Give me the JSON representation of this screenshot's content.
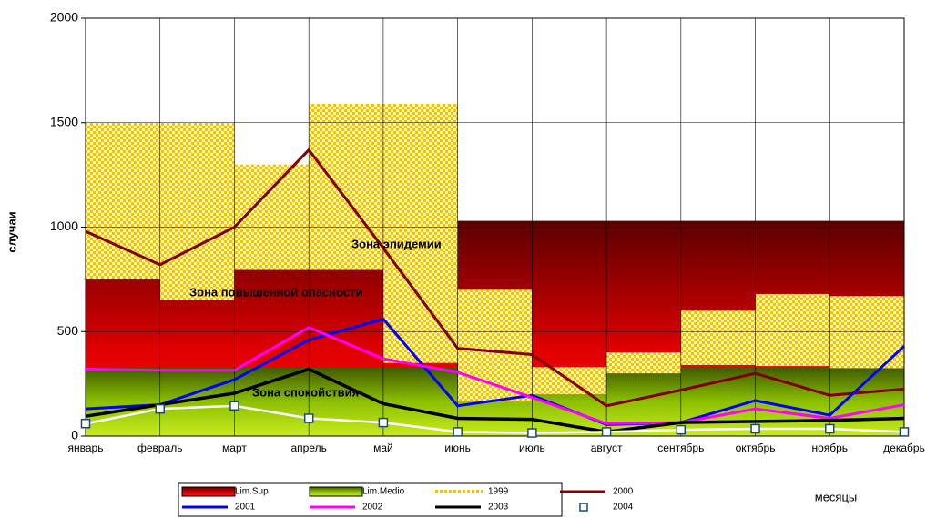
{
  "chart_data": {
    "type": "line",
    "ylabel": "случаи",
    "xlabel": "месяцы",
    "annotations": [
      "Зона эпидемии",
      "Зона повышенной опасности",
      "Зона спокойствия"
    ],
    "categories": [
      "январь",
      "февраль",
      "март",
      "апрель",
      "май",
      "июнь",
      "июль",
      "август",
      "сентябрь",
      "октябрь",
      "ноябрь",
      "декабрь"
    ],
    "ylim": [
      0,
      2000
    ],
    "yticks": [
      0,
      500,
      1000,
      1500,
      2000
    ],
    "grid": true,
    "series": [
      {
        "name": "Lim.Sup",
        "kind": "area",
        "color": "#d00000",
        "values": [
          1030,
          1030,
          1030,
          1030,
          1030,
          1030,
          1030,
          1030,
          1030,
          1030,
          1030,
          1030
        ]
      },
      {
        "name": "Lim.Medio",
        "kind": "area",
        "color": "#7fb000",
        "values": [
          330,
          330,
          330,
          330,
          330,
          330,
          330,
          330,
          330,
          330,
          330,
          330
        ]
      },
      {
        "name": "1999",
        "kind": "pattern",
        "color": "#f5c400",
        "values": [
          1500,
          1500,
          1300,
          1590,
          1590,
          700,
          330,
          400,
          600,
          680,
          670,
          650
        ]
      },
      {
        "name": "2000",
        "kind": "line",
        "color": "#800000",
        "values": [
          980,
          820,
          1000,
          1370,
          900,
          420,
          390,
          145,
          220,
          300,
          195,
          225
        ]
      },
      {
        "name": "2001",
        "kind": "line",
        "color": "#0000ff",
        "values": [
          130,
          150,
          270,
          460,
          560,
          145,
          195,
          55,
          65,
          170,
          100,
          430
        ]
      },
      {
        "name": "2002",
        "kind": "line",
        "color": "#ff00ff",
        "values": [
          320,
          315,
          315,
          520,
          370,
          305,
          185,
          60,
          65,
          130,
          85,
          150
        ]
      },
      {
        "name": "2003",
        "kind": "line",
        "color": "#000000",
        "values": [
          95,
          150,
          205,
          320,
          155,
          85,
          80,
          20,
          65,
          70,
          75,
          85
        ]
      },
      {
        "name": "2004",
        "kind": "marker",
        "color": "#ffffff",
        "values": [
          60,
          130,
          145,
          85,
          65,
          20,
          15,
          20,
          30,
          35,
          35,
          20
        ]
      }
    ]
  }
}
